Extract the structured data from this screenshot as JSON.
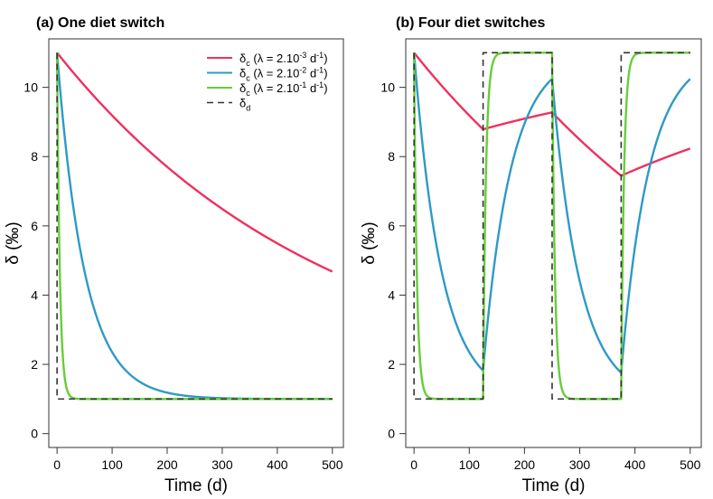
{
  "chart_data": [
    {
      "type": "line",
      "title": "(a) One diet switch",
      "xlabel": "Time (d)",
      "ylabel": "δ (‰)",
      "xlim": [
        -15,
        520
      ],
      "ylim": [
        -0.4,
        11.4
      ],
      "xticks": [
        0,
        100,
        200,
        300,
        400,
        500
      ],
      "yticks": [
        0,
        2,
        4,
        6,
        8,
        10
      ],
      "grid": false,
      "legend": {
        "placement": "top-right",
        "entries": [
          {
            "base": "δ",
            "sub": "c",
            "text": " (λ =  2.10",
            "sup": "-3",
            "unit": " d",
            "unitsup": "-1",
            "close": ")",
            "color": "#f0305e",
            "dash": false
          },
          {
            "base": "δ",
            "sub": "c",
            "text": " (λ =  2.10",
            "sup": "-2",
            "unit": " d",
            "unitsup": "-1",
            "close": ")",
            "color": "#2d9ac6",
            "dash": false
          },
          {
            "base": "δ",
            "sub": "c",
            "text": " (λ =  2.10",
            "sup": "-1",
            "unit": " d",
            "unitsup": "-1",
            "close": ")",
            "color": "#67cd3c",
            "dash": false
          },
          {
            "base": "δ",
            "sub": "d",
            "text": "",
            "sup": "",
            "unit": "",
            "unitsup": "",
            "close": "",
            "color": "#333333",
            "dash": true
          }
        ]
      },
      "series": [
        {
          "color": "#f0305e",
          "lambda": 0.002,
          "dashed": false
        },
        {
          "color": "#2d9ac6",
          "lambda": 0.02,
          "dashed": false
        },
        {
          "color": "#67cd3c",
          "lambda": 0.2,
          "dashed": false
        },
        {
          "color": "#333333",
          "lambda": null,
          "dashed": true
        }
      ],
      "diet": {
        "initial": 11,
        "switch_times": [
          0
        ],
        "levels": [
          1
        ],
        "t_end": 500
      }
    },
    {
      "type": "line",
      "title": "(b) Four diet switches",
      "xlabel": "Time (d)",
      "ylabel": "δ (‰)",
      "xlim": [
        -15,
        520
      ],
      "ylim": [
        -0.4,
        11.4
      ],
      "xticks": [
        0,
        100,
        200,
        300,
        400,
        500
      ],
      "yticks": [
        0,
        2,
        4,
        6,
        8,
        10
      ],
      "grid": false,
      "series": [
        {
          "color": "#f0305e",
          "lambda": 0.002,
          "dashed": false
        },
        {
          "color": "#2d9ac6",
          "lambda": 0.02,
          "dashed": false
        },
        {
          "color": "#67cd3c",
          "lambda": 0.2,
          "dashed": false
        },
        {
          "color": "#333333",
          "lambda": null,
          "dashed": true
        }
      ],
      "diet": {
        "initial": 11,
        "switch_times": [
          0,
          125,
          250,
          375
        ],
        "levels": [
          1,
          11,
          1,
          11
        ],
        "t_end": 500
      }
    }
  ]
}
